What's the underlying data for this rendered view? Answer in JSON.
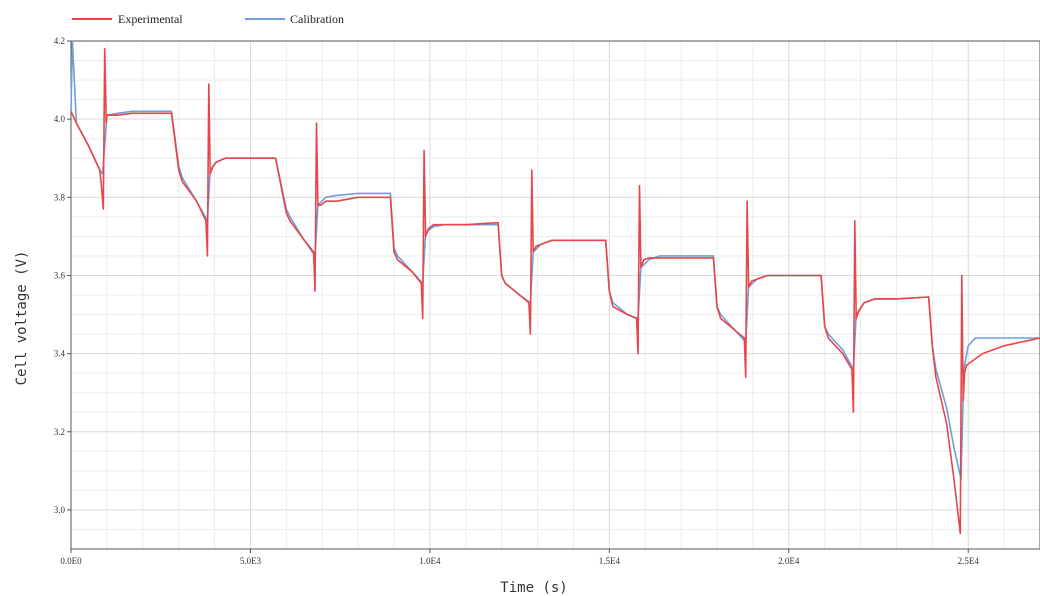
{
  "chart_data": {
    "type": "line",
    "title": "",
    "xlabel": "Time (s)",
    "ylabel": "Cell voltage (V)",
    "xlim": [
      0,
      27000
    ],
    "ylim": [
      2.9,
      4.2
    ],
    "x_ticks": [
      0,
      5000,
      10000,
      15000,
      20000,
      25000
    ],
    "x_tick_labels": [
      "0.0E0",
      "5.0E3",
      "1.0E4",
      "1.5E4",
      "2.0E4",
      "2.5E4"
    ],
    "y_ticks": [
      3.0,
      3.2,
      3.4,
      3.6,
      3.8,
      4.0,
      4.2
    ],
    "y_tick_labels": [
      "3.0",
      "3.2",
      "3.4",
      "3.6",
      "3.8",
      "4.0",
      "4.2"
    ],
    "grid": true,
    "legend_position": "top-left",
    "series": [
      {
        "name": "Experimental",
        "color": "#e8454a",
        "x": [
          0,
          150,
          500,
          800,
          840,
          900,
          940,
          980,
          1000,
          1100,
          1300,
          1700,
          2200,
          2800,
          3000,
          3100,
          3500,
          3760,
          3800,
          3840,
          3880,
          3960,
          4050,
          4300,
          5000,
          5700,
          6000,
          6100,
          6500,
          6760,
          6800,
          6840,
          6880,
          6960,
          7100,
          7400,
          8000,
          8900,
          9000,
          9100,
          9500,
          9760,
          9800,
          9840,
          9880,
          9960,
          10100,
          10400,
          11000,
          11900,
          12000,
          12100,
          12500,
          12760,
          12800,
          12840,
          12880,
          12960,
          13100,
          13400,
          14000,
          14900,
          15000,
          15100,
          15500,
          15760,
          15800,
          15840,
          15880,
          15960,
          16100,
          16400,
          17000,
          17900,
          18000,
          18100,
          18500,
          18760,
          18800,
          18840,
          18880,
          18960,
          19100,
          19400,
          20000,
          20900,
          21000,
          21100,
          21500,
          21760,
          21800,
          21840,
          21880,
          21960,
          22100,
          22400,
          23000,
          23900,
          24000,
          24100,
          24400,
          24600,
          24780,
          24820,
          24860,
          24900,
          24950,
          25100,
          25400,
          26000,
          27000
        ],
        "y": [
          4.02,
          3.99,
          3.93,
          3.87,
          3.84,
          3.77,
          4.18,
          3.99,
          4.01,
          4.01,
          4.01,
          4.015,
          4.015,
          4.015,
          3.87,
          3.84,
          3.79,
          3.74,
          3.65,
          4.09,
          3.86,
          3.88,
          3.89,
          3.9,
          3.9,
          3.9,
          3.76,
          3.74,
          3.69,
          3.66,
          3.56,
          3.99,
          3.78,
          3.78,
          3.79,
          3.79,
          3.8,
          3.8,
          3.66,
          3.64,
          3.61,
          3.58,
          3.49,
          3.92,
          3.7,
          3.72,
          3.73,
          3.73,
          3.73,
          3.735,
          3.6,
          3.58,
          3.55,
          3.53,
          3.45,
          3.87,
          3.66,
          3.675,
          3.68,
          3.69,
          3.69,
          3.69,
          3.56,
          3.52,
          3.5,
          3.49,
          3.4,
          3.83,
          3.62,
          3.64,
          3.645,
          3.645,
          3.645,
          3.645,
          3.52,
          3.49,
          3.46,
          3.44,
          3.34,
          3.79,
          3.57,
          3.585,
          3.59,
          3.6,
          3.6,
          3.6,
          3.47,
          3.44,
          3.4,
          3.36,
          3.25,
          3.74,
          3.49,
          3.51,
          3.53,
          3.54,
          3.54,
          3.545,
          3.42,
          3.34,
          3.22,
          3.08,
          2.94,
          3.6,
          3.28,
          3.35,
          3.37,
          3.38,
          3.4,
          3.42,
          3.44
        ]
      },
      {
        "name": "Calibration",
        "color": "#6f9fd8",
        "x": [
          0,
          40,
          150,
          500,
          800,
          880,
          1000,
          1300,
          1700,
          2200,
          2800,
          3000,
          3100,
          3500,
          3800,
          3880,
          4050,
          4300,
          5000,
          5700,
          6000,
          6100,
          6500,
          6800,
          6880,
          7100,
          7400,
          8000,
          8900,
          9000,
          9100,
          9500,
          9800,
          9880,
          10100,
          10400,
          11000,
          11900,
          12000,
          12100,
          12500,
          12800,
          12880,
          13100,
          13400,
          14000,
          14900,
          15000,
          15100,
          15500,
          15800,
          15880,
          16100,
          16400,
          17000,
          17900,
          18000,
          18100,
          18500,
          18800,
          18880,
          19100,
          19400,
          20000,
          20900,
          21000,
          21100,
          21500,
          21800,
          21880,
          22100,
          22400,
          23000,
          23900,
          24000,
          24100,
          24400,
          24600,
          24800,
          24880,
          25000,
          25200,
          26000,
          27000
        ],
        "y": [
          4.02,
          4.2,
          3.99,
          3.93,
          3.87,
          3.86,
          4.01,
          4.015,
          4.02,
          4.02,
          4.02,
          3.88,
          3.85,
          3.79,
          3.74,
          3.87,
          3.89,
          3.9,
          3.9,
          3.9,
          3.77,
          3.75,
          3.69,
          3.65,
          3.78,
          3.8,
          3.805,
          3.81,
          3.81,
          3.67,
          3.65,
          3.61,
          3.58,
          3.71,
          3.725,
          3.73,
          3.73,
          3.73,
          3.6,
          3.58,
          3.55,
          3.53,
          3.66,
          3.68,
          3.69,
          3.69,
          3.69,
          3.56,
          3.53,
          3.5,
          3.49,
          3.62,
          3.64,
          3.65,
          3.65,
          3.65,
          3.52,
          3.5,
          3.46,
          3.43,
          3.57,
          3.59,
          3.6,
          3.6,
          3.6,
          3.47,
          3.45,
          3.41,
          3.36,
          3.5,
          3.53,
          3.54,
          3.54,
          3.545,
          3.42,
          3.36,
          3.26,
          3.16,
          3.08,
          3.36,
          3.42,
          3.44,
          3.44,
          3.44
        ]
      }
    ]
  }
}
